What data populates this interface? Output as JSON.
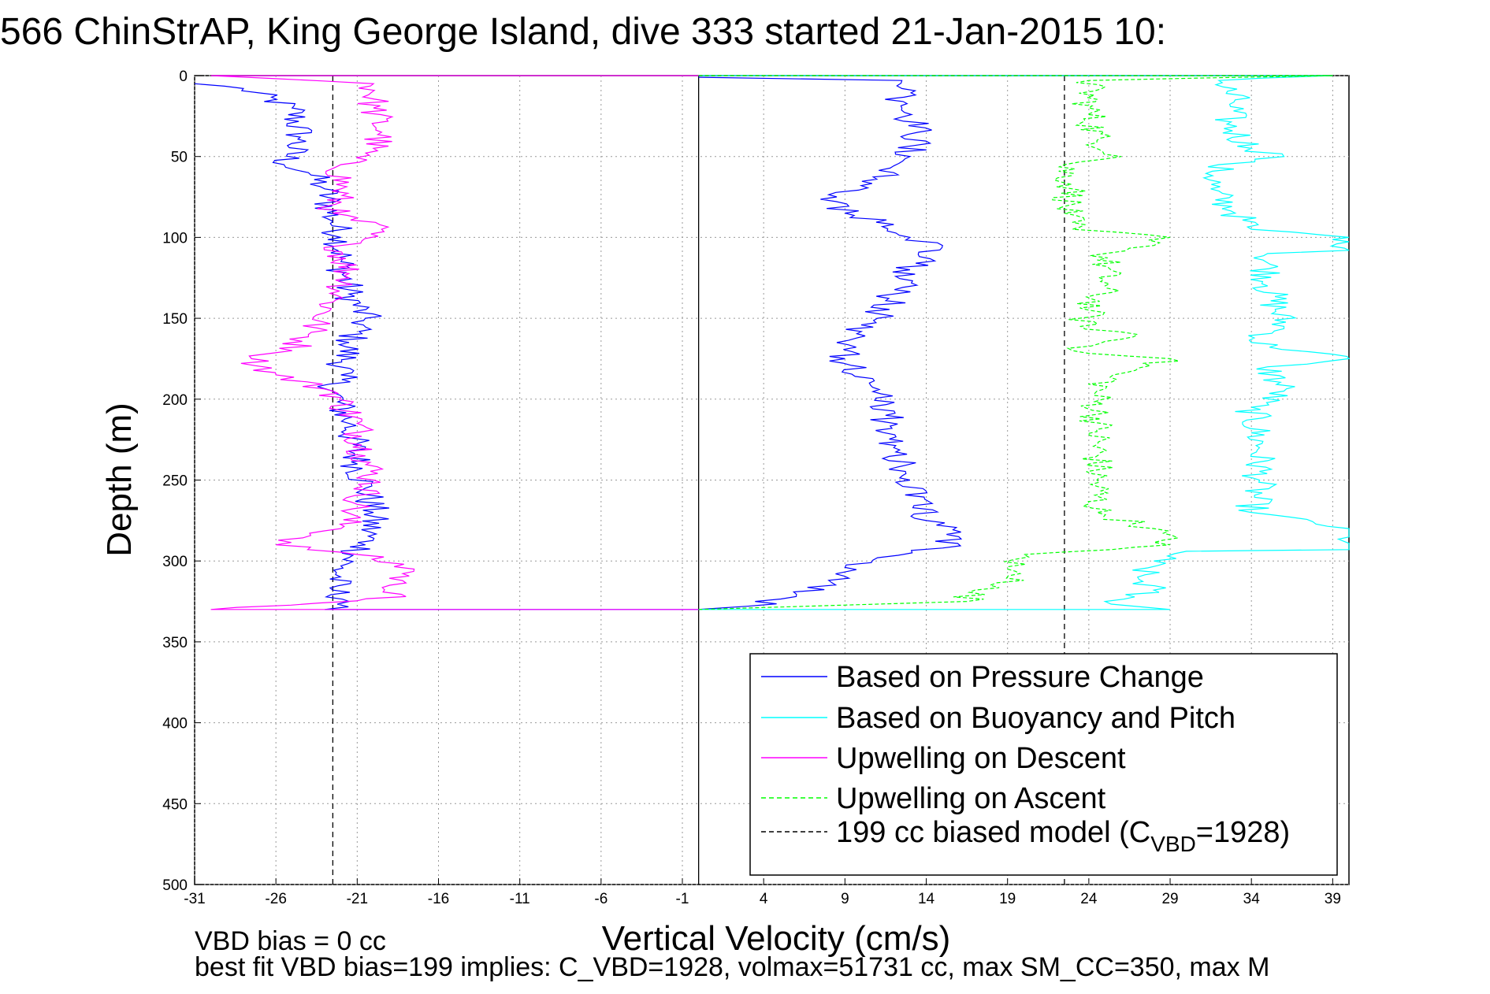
{
  "chart_data": {
    "type": "line",
    "title": "566 ChinStrAP, King George Island, dive 333 started 21-Jan-2015 10:",
    "xlabel": "Vertical Velocity (cm/s)",
    "ylabel": "Depth (m)",
    "xlim": [
      -31,
      40
    ],
    "ylim": [
      0,
      500
    ],
    "y_reversed": true,
    "grid": true,
    "x_ticks": [
      -31,
      -26,
      -21,
      -16,
      -11,
      -6,
      -1,
      4,
      9,
      14,
      19,
      24,
      29,
      34,
      39
    ],
    "y_ticks": [
      0,
      50,
      100,
      150,
      200,
      250,
      300,
      350,
      400,
      450,
      500
    ],
    "legend_position": "bottom-right",
    "reference_lines": [
      {
        "orientation": "vertical",
        "x": 0,
        "style": "solid",
        "color": "#000000"
      },
      {
        "orientation": "vertical",
        "x": -22.5,
        "style": "dashed",
        "color": "#000000"
      },
      {
        "orientation": "vertical",
        "x": 22.5,
        "style": "dashed",
        "color": "#000000"
      }
    ],
    "series": [
      {
        "name": "Based on Pressure Change",
        "color": "#0000ff",
        "style": "solid",
        "points": [
          [
            -31,
            5
          ],
          [
            -28,
            8
          ],
          [
            -25,
            20
          ],
          [
            -24.5,
            38
          ],
          [
            -25.5,
            55
          ],
          [
            -24,
            60
          ],
          [
            -23,
            70
          ],
          [
            -22.5,
            90
          ],
          [
            -22,
            100
          ],
          [
            -22,
            115
          ],
          [
            -21.5,
            135
          ],
          [
            -20.5,
            150
          ],
          [
            -21.5,
            165
          ],
          [
            -22,
            185
          ],
          [
            -22.5,
            195
          ],
          [
            -21.5,
            215
          ],
          [
            -21,
            240
          ],
          [
            -20.5,
            255
          ],
          [
            -20,
            270
          ],
          [
            -20.5,
            290
          ],
          [
            -22,
            303
          ],
          [
            -22.5,
            318
          ],
          [
            -21.5,
            325
          ],
          [
            -23,
            330
          ],
          [
            0,
            330
          ],
          [
            3,
            328
          ],
          [
            6,
            322
          ],
          [
            8,
            312
          ],
          [
            9,
            304
          ],
          [
            11,
            298
          ],
          [
            15,
            292
          ],
          [
            16,
            285
          ],
          [
            14,
            275
          ],
          [
            13,
            250
          ],
          [
            12,
            230
          ],
          [
            11.5,
            210
          ],
          [
            10.5,
            190
          ],
          [
            9,
            175
          ],
          [
            8.5,
            165
          ],
          [
            11,
            150
          ],
          [
            12,
            135
          ],
          [
            13,
            120
          ],
          [
            15,
            105
          ],
          [
            13,
            100
          ],
          [
            12,
            92
          ],
          [
            9,
            85
          ],
          [
            8.5,
            75
          ],
          [
            10,
            68
          ],
          [
            12,
            60
          ],
          [
            13,
            50
          ],
          [
            13.5,
            35
          ],
          [
            12.5,
            20
          ],
          [
            12.5,
            8
          ],
          [
            12.5,
            3
          ],
          [
            0,
            1
          ]
        ]
      },
      {
        "name": "Based on Buoyancy and Pitch",
        "color": "#00ffff",
        "style": "solid",
        "points": [
          [
            0,
            0
          ],
          [
            39,
            0
          ],
          [
            32,
            3
          ],
          [
            33,
            15
          ],
          [
            32.5,
            30
          ],
          [
            34,
            45
          ],
          [
            36,
            50
          ],
          [
            32,
            55
          ],
          [
            31.5,
            70
          ],
          [
            33,
            85
          ],
          [
            34,
            95
          ],
          [
            40,
            100
          ],
          [
            40,
            108
          ],
          [
            35,
            110
          ],
          [
            35,
            130
          ],
          [
            36,
            155
          ],
          [
            34,
            165
          ],
          [
            40,
            175
          ],
          [
            35,
            180
          ],
          [
            36,
            195
          ],
          [
            34,
            205
          ],
          [
            34.5,
            230
          ],
          [
            34.5,
            250
          ],
          [
            34,
            270
          ],
          [
            40,
            280
          ],
          [
            40,
            293
          ],
          [
            30,
            294
          ],
          [
            28,
            300
          ],
          [
            27,
            310
          ],
          [
            28,
            318
          ],
          [
            25,
            325
          ],
          [
            29,
            330
          ],
          [
            0,
            330
          ]
        ]
      },
      {
        "name": "Upwelling on Descent",
        "color": "#ff00ff",
        "style": "solid",
        "points": [
          [
            0,
            0
          ],
          [
            -30,
            0
          ],
          [
            -20,
            5
          ],
          [
            -20,
            20
          ],
          [
            -19.5,
            35
          ],
          [
            -20,
            45
          ],
          [
            -22,
            55
          ],
          [
            -22,
            70
          ],
          [
            -22.5,
            85
          ],
          [
            -19.5,
            95
          ],
          [
            -22,
            105
          ],
          [
            -21.5,
            125
          ],
          [
            -22.5,
            140
          ],
          [
            -24,
            160
          ],
          [
            -25,
            170
          ],
          [
            -27.5,
            175
          ],
          [
            -26,
            185
          ],
          [
            -22.5,
            195
          ],
          [
            -21,
            215
          ],
          [
            -20.5,
            235
          ],
          [
            -20,
            250
          ],
          [
            -21,
            265
          ],
          [
            -22,
            280
          ],
          [
            -26,
            290
          ],
          [
            -21,
            296
          ],
          [
            -17.5,
            305
          ],
          [
            -19,
            315
          ],
          [
            -18,
            322
          ],
          [
            -30,
            330
          ],
          [
            0,
            330
          ]
        ]
      },
      {
        "name": "Upwelling on Ascent",
        "color": "#00ff00",
        "style": "dashed",
        "points": [
          [
            0,
            0
          ],
          [
            39,
            0
          ],
          [
            24,
            3
          ],
          [
            24,
            20
          ],
          [
            24.5,
            40
          ],
          [
            26,
            50
          ],
          [
            22.5,
            55
          ],
          [
            23,
            70
          ],
          [
            22.5,
            85
          ],
          [
            23,
            95
          ],
          [
            29,
            100
          ],
          [
            28,
            105
          ],
          [
            25,
            110
          ],
          [
            25,
            130
          ],
          [
            24,
            145
          ],
          [
            23.5,
            155
          ],
          [
            27,
            160
          ],
          [
            23,
            170
          ],
          [
            29,
            175
          ],
          [
            25.5,
            185
          ],
          [
            24.5,
            195
          ],
          [
            24.5,
            220
          ],
          [
            24.5,
            250
          ],
          [
            24.5,
            270
          ],
          [
            28,
            280
          ],
          [
            29,
            290
          ],
          [
            20,
            296
          ],
          [
            19,
            305
          ],
          [
            20,
            312
          ],
          [
            17,
            318
          ],
          [
            16.5,
            325
          ],
          [
            0,
            330
          ]
        ]
      },
      {
        "name": "199 cc biased model (C_VBD=1928)",
        "color": "#000000",
        "style": "dashed",
        "points": []
      }
    ],
    "legend": {
      "entries": [
        {
          "label": "Based on Pressure Change",
          "color": "#0000ff",
          "style": "solid"
        },
        {
          "label": "Based on Buoyancy and Pitch",
          "color": "#00ffff",
          "style": "solid"
        },
        {
          "label": "Upwelling on Descent",
          "color": "#ff00ff",
          "style": "solid"
        },
        {
          "label": "Upwelling on Ascent",
          "color": "#00ff00",
          "style": "dashed"
        },
        {
          "label": "199 cc biased model (C",
          "sub": "VBD",
          "suffix": "=1928)",
          "color": "#000000",
          "style": "dashed"
        }
      ]
    }
  },
  "notes": {
    "line1": "VBD bias = 0 cc",
    "line2": "best fit VBD bias=199 implies: C_VBD=1928, volmax=51731 cc, max SM_CC=350, max M"
  }
}
